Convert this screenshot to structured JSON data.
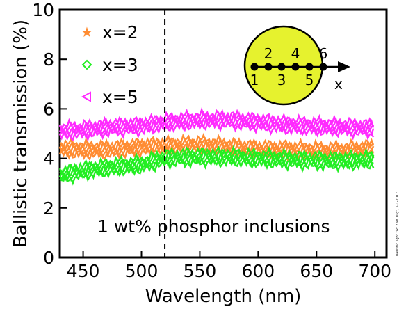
{
  "chart_data": {
    "type": "line",
    "xlabel": "Wavelength (nm)",
    "ylabel": "Ballistic transmission (%)",
    "xlim": [
      430,
      710
    ],
    "ylim": [
      0,
      10
    ],
    "xticks": [
      450,
      500,
      550,
      600,
      650,
      700
    ],
    "yticks": [
      0,
      2,
      4,
      6,
      8,
      10
    ],
    "grid": false,
    "legend_position": "top-left",
    "series": [
      {
        "name": "x=2",
        "color": "#ff8c32",
        "marker": "star",
        "x": [
          430,
          450,
          475,
          500,
          520,
          550,
          575,
          600,
          625,
          650,
          675,
          700
        ],
        "y": [
          4.4,
          4.35,
          4.35,
          4.45,
          4.5,
          4.55,
          4.45,
          4.35,
          4.35,
          4.3,
          4.3,
          4.4
        ],
        "spread": 0.3
      },
      {
        "name": "x=3",
        "color": "#22ee22",
        "marker": "diamond",
        "x": [
          430,
          450,
          475,
          500,
          520,
          550,
          575,
          600,
          625,
          650,
          675,
          700
        ],
        "y": [
          3.3,
          3.5,
          3.65,
          3.75,
          4.0,
          4.05,
          4.05,
          4.0,
          3.95,
          3.9,
          3.9,
          3.95
        ],
        "spread": 0.3
      },
      {
        "name": "x=5",
        "color": "#ff2aff",
        "marker": "triangle-left",
        "x": [
          430,
          450,
          475,
          500,
          520,
          550,
          575,
          600,
          625,
          650,
          675,
          700
        ],
        "y": [
          5.1,
          5.15,
          5.25,
          5.3,
          5.45,
          5.55,
          5.55,
          5.45,
          5.35,
          5.3,
          5.25,
          5.2
        ],
        "spread": 0.3
      }
    ],
    "vline": {
      "x": 520,
      "style": "dashed"
    },
    "annotation": "1 wt% phosphor inclusions",
    "inset": {
      "fill_color": "#e6f22e",
      "point_labels_top": [
        "2",
        "4",
        "6"
      ],
      "point_labels_bottom": [
        "1",
        "3",
        "5"
      ],
      "axis_label": "x"
    },
    "side_note": "ballistic light \"wt 2 wt DPJ\", 5-1-2017"
  }
}
